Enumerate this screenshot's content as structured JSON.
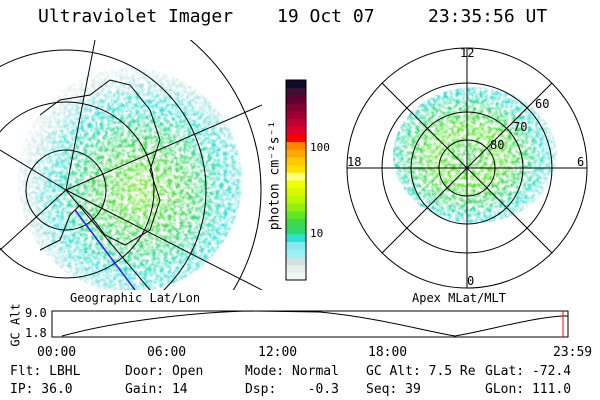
{
  "header": {
    "instrument": "Ultraviolet Imager",
    "date": "19 Oct 07",
    "time": "23:35:56 UT"
  },
  "left_panel": {
    "label": "Geographic Lat/Lon"
  },
  "right_panel": {
    "label": "Apex MLat/MLT",
    "mlt_labels": [
      "12",
      "6",
      "0",
      "18"
    ],
    "lat_labels": [
      "60",
      "70",
      "80"
    ]
  },
  "colorbar": {
    "label": "photon cm⁻²s⁻¹",
    "ticks": [
      "100",
      "10"
    ],
    "scale": "log",
    "colors": [
      "#f2f7f2",
      "#e6f0ea",
      "#d2e2e2",
      "#9af0f5",
      "#8ae8f0",
      "#2ee0d8",
      "#2ed86a",
      "#3ed850",
      "#60e828",
      "#90f010",
      "#b8f800",
      "#d8f800",
      "#f0ff00",
      "#ffff80",
      "#ffe000",
      "#ffc800",
      "#ffa800",
      "#ff8800",
      "#ff0000",
      "#e0002a",
      "#c00030",
      "#a00030",
      "#800030",
      "#600030",
      "#401030",
      "#100c30"
    ]
  },
  "altitude_plot": {
    "ylabel": "GC Alt",
    "yticks": [
      "9.0",
      "1.8"
    ],
    "xticks": [
      "00:00",
      "06:00",
      "12:00",
      "18:00",
      "23:59"
    ],
    "current_marker_color": "#ff0000"
  },
  "status": {
    "row1": [
      "Flt: LBHL",
      "Door: Open",
      "Mode: Normal",
      "GC Alt: 7.5 Re",
      "GLat: -72.4"
    ],
    "row2": [
      "IP: 36.0",
      "Gain: 14",
      "Dsp:    -0.3",
      "Seq: 39",
      "GLon: 111.0"
    ]
  }
}
